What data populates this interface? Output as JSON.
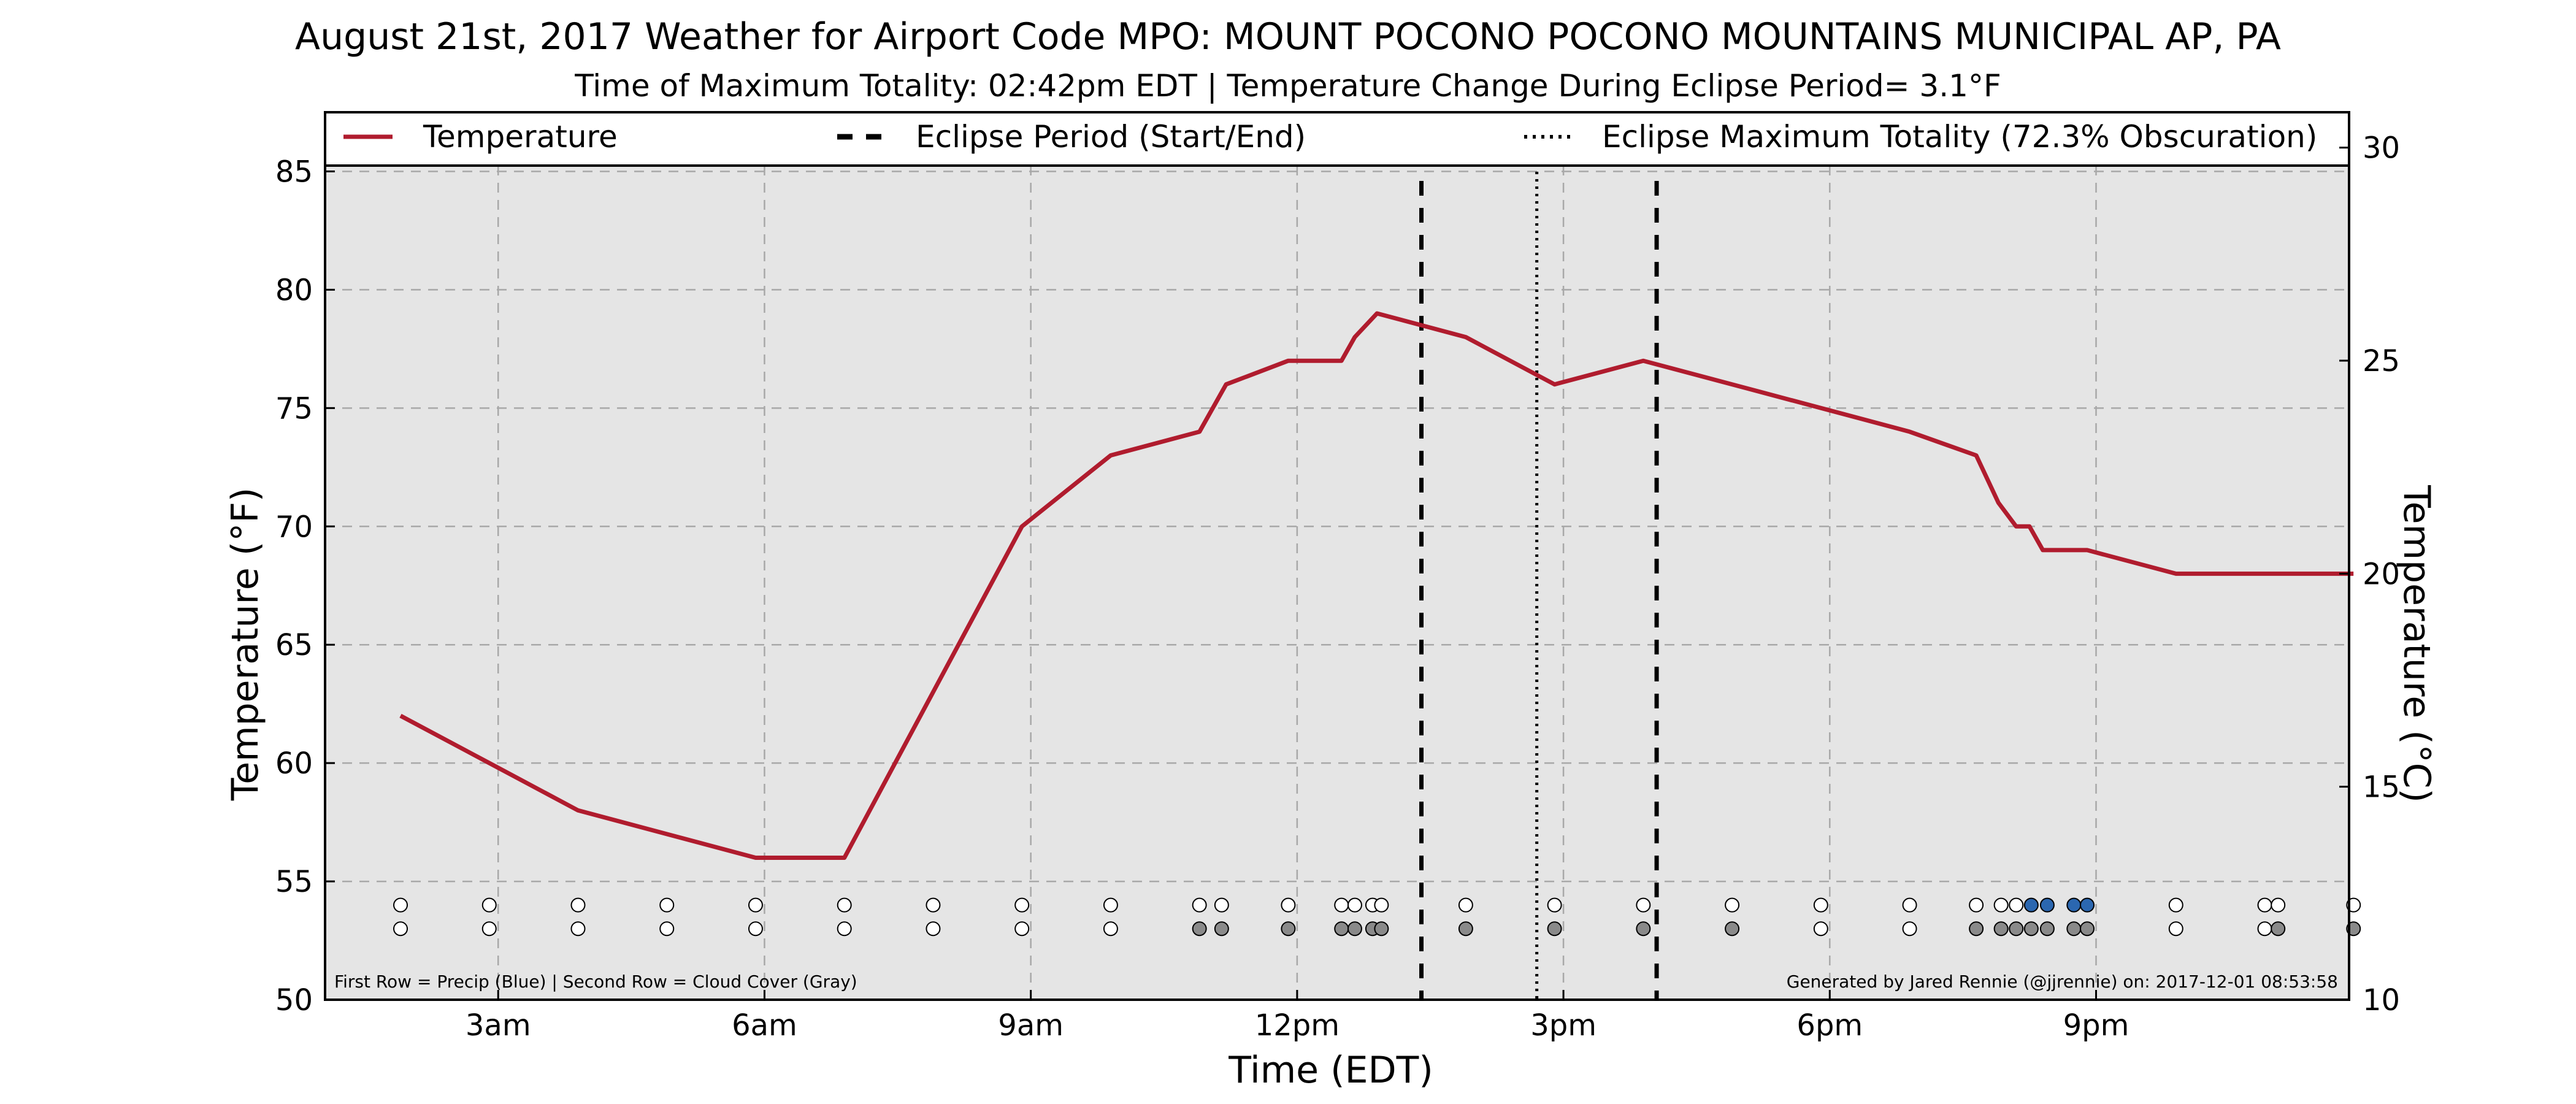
{
  "chart_data": {
    "type": "line",
    "title": "August 21st, 2017 Weather for Airport Code MPO: MOUNT POCONO POCONO MOUNTAINS MUNICIPAL AP, PA",
    "subtitle": "Time of Maximum Totality: 02:42pm EDT | Temperature Change During Eclipse Period= 3.1°F",
    "xlabel": "Time (EDT)",
    "ylabel": "Temperature (°F)",
    "ylabel2": "Temperature (°C)",
    "xlim": [
      1.05,
      23.85
    ],
    "ylim": [
      50,
      87.5
    ],
    "ylim2": [
      10,
      30.83
    ],
    "x_ticks": [
      3,
      6,
      9,
      12,
      15,
      18,
      21
    ],
    "x_tick_labels": [
      "3am",
      "6am",
      "9am",
      "12pm",
      "3pm",
      "6pm",
      "9pm"
    ],
    "y_ticks": [
      50,
      55,
      60,
      65,
      70,
      75,
      80,
      85
    ],
    "y_tick_labels": [
      "50",
      "55",
      "60",
      "65",
      "70",
      "75",
      "80",
      "85"
    ],
    "y2_ticks": [
      10,
      15,
      20,
      25,
      30
    ],
    "y2_tick_labels": [
      "10",
      "15",
      "20",
      "25",
      "30"
    ],
    "grid": true,
    "legend_position": "top",
    "legend": [
      "Temperature",
      "Eclipse Period (Start/End)",
      "Eclipse Maximum Totality (72.3% Obscuration)"
    ],
    "series": [
      {
        "name": "Temperature",
        "color": "#b01c2e",
        "x": [
          1.9,
          2.9,
          3.9,
          4.9,
          5.9,
          6.9,
          7.9,
          8.9,
          9.9,
          10.9,
          11.2,
          11.9,
          12.5,
          12.65,
          12.9,
          13.9,
          14.9,
          15.9,
          16.9,
          17.9,
          18.9,
          19.65,
          19.9,
          20.1,
          20.25,
          20.4,
          20.9,
          21.9,
          22.9,
          23.9
        ],
        "y": [
          62,
          60,
          58,
          57,
          56,
          56,
          63,
          70,
          73,
          74,
          76,
          77,
          77,
          78,
          79,
          78,
          76,
          77,
          76,
          75,
          74,
          73,
          71,
          70,
          70,
          69,
          69,
          68,
          68,
          68
        ]
      }
    ],
    "eclipse_start": 13.4,
    "eclipse_end": 16.05,
    "eclipse_max": 14.7,
    "precip_row_y": 54,
    "cloud_row_y": 53,
    "obs_x": [
      1.9,
      2.9,
      3.9,
      4.9,
      5.9,
      6.9,
      7.9,
      8.9,
      9.9,
      10.9,
      11.15,
      11.9,
      12.5,
      12.65,
      12.85,
      12.95,
      13.9,
      14.9,
      15.9,
      16.9,
      17.9,
      18.9,
      19.65,
      19.93,
      20.1,
      20.27,
      20.45,
      20.75,
      20.9,
      21.9,
      22.9,
      23.05,
      23.9
    ],
    "precip": [
      "none",
      "none",
      "none",
      "none",
      "none",
      "none",
      "none",
      "none",
      "none",
      "none",
      "none",
      "none",
      "none",
      "none",
      "none",
      "none",
      "none",
      "none",
      "none",
      "none",
      "none",
      "none",
      "none",
      "none",
      "none",
      "rain",
      "rain",
      "rain",
      "rain",
      "none",
      "none",
      "none",
      "none"
    ],
    "cloud": [
      "clear",
      "clear",
      "clear",
      "clear",
      "clear",
      "clear",
      "clear",
      "clear",
      "clear",
      "cloud",
      "cloud",
      "cloud",
      "cloud",
      "cloud",
      "cloud",
      "cloud",
      "cloud",
      "cloud",
      "cloud",
      "cloud",
      "clear",
      "clear",
      "cloud",
      "cloud",
      "cloud",
      "cloud",
      "cloud",
      "cloud",
      "cloud",
      "clear",
      "clear",
      "cloud",
      "cloud"
    ],
    "colors": {
      "line": "#b01c2e",
      "plot_bg": "#e5e5e5",
      "grid": "#a8a8a8",
      "precip": "#2b67b0",
      "cloud": "#8a8a8a",
      "empty": "#ffffff"
    },
    "footnote_left": "First Row = Precip (Blue) | Second Row = Cloud Cover (Gray)",
    "footnote_right": "Generated by Jared Rennie (@jjrennie) on: 2017-12-01 08:53:58"
  }
}
